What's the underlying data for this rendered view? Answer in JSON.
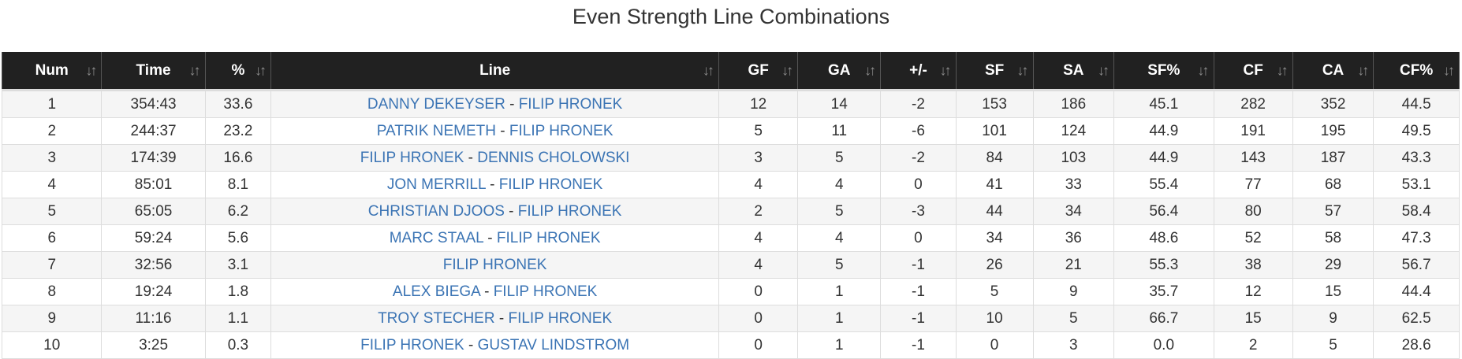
{
  "title": "Even Strength Line Combinations",
  "colors": {
    "header_bg": "#212121",
    "link": "#3b74b4",
    "row_stripe": "#f5f5f5"
  },
  "sort_icon": "sort-arrows-icon",
  "columns": [
    "Num",
    "Time",
    "%",
    "Line",
    "GF",
    "GA",
    "+/-",
    "SF",
    "SA",
    "SF%",
    "CF",
    "CA",
    "CF%"
  ],
  "rows": [
    {
      "num": "1",
      "time": "354:43",
      "pct": "33.6",
      "players": [
        "DANNY DEKEYSER",
        "FILIP HRONEK"
      ],
      "gf": "12",
      "ga": "14",
      "pm": "-2",
      "sf": "153",
      "sa": "186",
      "sfp": "45.1",
      "cf": "282",
      "ca": "352",
      "cfp": "44.5"
    },
    {
      "num": "2",
      "time": "244:37",
      "pct": "23.2",
      "players": [
        "PATRIK NEMETH",
        "FILIP HRONEK"
      ],
      "gf": "5",
      "ga": "11",
      "pm": "-6",
      "sf": "101",
      "sa": "124",
      "sfp": "44.9",
      "cf": "191",
      "ca": "195",
      "cfp": "49.5"
    },
    {
      "num": "3",
      "time": "174:39",
      "pct": "16.6",
      "players": [
        "FILIP HRONEK",
        "DENNIS CHOLOWSKI"
      ],
      "gf": "3",
      "ga": "5",
      "pm": "-2",
      "sf": "84",
      "sa": "103",
      "sfp": "44.9",
      "cf": "143",
      "ca": "187",
      "cfp": "43.3"
    },
    {
      "num": "4",
      "time": "85:01",
      "pct": "8.1",
      "players": [
        "JON MERRILL",
        "FILIP HRONEK"
      ],
      "gf": "4",
      "ga": "4",
      "pm": "0",
      "sf": "41",
      "sa": "33",
      "sfp": "55.4",
      "cf": "77",
      "ca": "68",
      "cfp": "53.1"
    },
    {
      "num": "5",
      "time": "65:05",
      "pct": "6.2",
      "players": [
        "CHRISTIAN DJOOS",
        "FILIP HRONEK"
      ],
      "gf": "2",
      "ga": "5",
      "pm": "-3",
      "sf": "44",
      "sa": "34",
      "sfp": "56.4",
      "cf": "80",
      "ca": "57",
      "cfp": "58.4"
    },
    {
      "num": "6",
      "time": "59:24",
      "pct": "5.6",
      "players": [
        "MARC STAAL",
        "FILIP HRONEK"
      ],
      "gf": "4",
      "ga": "4",
      "pm": "0",
      "sf": "34",
      "sa": "36",
      "sfp": "48.6",
      "cf": "52",
      "ca": "58",
      "cfp": "47.3"
    },
    {
      "num": "7",
      "time": "32:56",
      "pct": "3.1",
      "players": [
        "FILIP HRONEK"
      ],
      "gf": "4",
      "ga": "5",
      "pm": "-1",
      "sf": "26",
      "sa": "21",
      "sfp": "55.3",
      "cf": "38",
      "ca": "29",
      "cfp": "56.7"
    },
    {
      "num": "8",
      "time": "19:24",
      "pct": "1.8",
      "players": [
        "ALEX BIEGA",
        "FILIP HRONEK"
      ],
      "gf": "0",
      "ga": "1",
      "pm": "-1",
      "sf": "5",
      "sa": "9",
      "sfp": "35.7",
      "cf": "12",
      "ca": "15",
      "cfp": "44.4"
    },
    {
      "num": "9",
      "time": "11:16",
      "pct": "1.1",
      "players": [
        "TROY STECHER",
        "FILIP HRONEK"
      ],
      "gf": "0",
      "ga": "1",
      "pm": "-1",
      "sf": "10",
      "sa": "5",
      "sfp": "66.7",
      "cf": "15",
      "ca": "9",
      "cfp": "62.5"
    },
    {
      "num": "10",
      "time": "3:25",
      "pct": "0.3",
      "players": [
        "FILIP HRONEK",
        "GUSTAV LINDSTROM"
      ],
      "gf": "0",
      "ga": "1",
      "pm": "-1",
      "sf": "0",
      "sa": "3",
      "sfp": "0.0",
      "cf": "2",
      "ca": "5",
      "cfp": "28.6"
    }
  ]
}
